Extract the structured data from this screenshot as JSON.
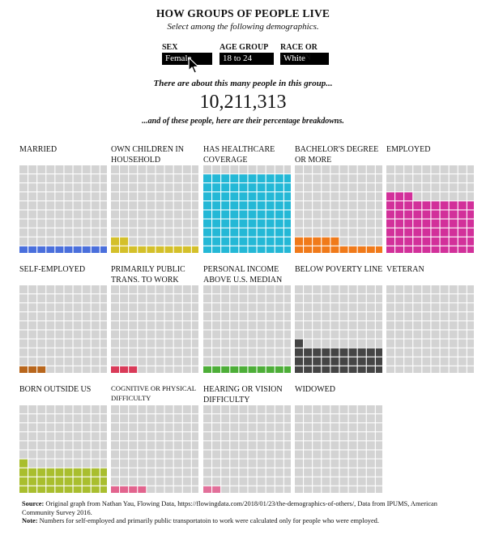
{
  "header": {
    "title": "HOW GROUPS OF PEOPLE LIVE",
    "subtitle": "Select among the following demographics."
  },
  "controls": [
    {
      "label": "SEX",
      "value": "Female"
    },
    {
      "label": "AGE GROUP",
      "value": "18 to 24"
    },
    {
      "label": "RACE OR ORIGIN",
      "value": "White"
    }
  ],
  "summary": {
    "pre": "There are about this many people in this group...",
    "count": "10,211,313",
    "post": "...and of these people, here are their percentage breakdowns."
  },
  "chart_data": {
    "type": "waffle",
    "grid": "10x10 squares per panel, 1 square = 1%",
    "empty_color": "#d3d3d3",
    "panels": [
      {
        "label": "MARRIED",
        "percent": 10,
        "color": "#4a6fdc"
      },
      {
        "label": "OWN CHILDREN IN HOUSEHOLD",
        "percent": 12,
        "color": "#d4c02a"
      },
      {
        "label": "HAS HEALTHCARE COVERAGE",
        "percent": 90,
        "color": "#24b8d6"
      },
      {
        "label": "BACHELOR'S DEGREE OR MORE",
        "percent": 15,
        "color": "#f07a1a"
      },
      {
        "label": "EMPLOYED",
        "percent": 63,
        "color": "#d2309a"
      },
      {
        "label": "SELF-EMPLOYED",
        "percent": 3,
        "color": "#b8661c"
      },
      {
        "label": "PRIMARILY PUBLIC TRANS. TO WORK",
        "percent": 3,
        "color": "#d93a58"
      },
      {
        "label": "PERSONAL INCOME ABOVE U.S. MEDIAN",
        "percent": 10,
        "color": "#4dae38"
      },
      {
        "label": "BELOW POVERTY LINE",
        "percent": 31,
        "color": "#444444"
      },
      {
        "label": "VETERAN",
        "percent": 0,
        "color": "#888888"
      },
      {
        "label": "BORN OUTSIDE US",
        "percent": 31,
        "color": "#a9be2e"
      },
      {
        "label": "COGNITIVE OR PHYSICAL DIFFICULTY",
        "percent": 4,
        "color": "#e2648e"
      },
      {
        "label": "HEARING OR VISION DIFFICULTY",
        "percent": 2,
        "color": "#e2709a"
      },
      {
        "label": "WIDOWED",
        "percent": 0,
        "color": "#888888"
      }
    ]
  },
  "footer": {
    "source_label": "Source:",
    "source_text": " Original graph from Nathan Yau, Flowing Data, https://flowingdata.com/2018/01/23/the-demographics-of-others/, Data from IPUMS, American Community Survey 2016.",
    "note_label": "Note:",
    "note_text": " Numbers for self-employed and primarily public transportatoin to work were calculated only for people who were employed."
  }
}
